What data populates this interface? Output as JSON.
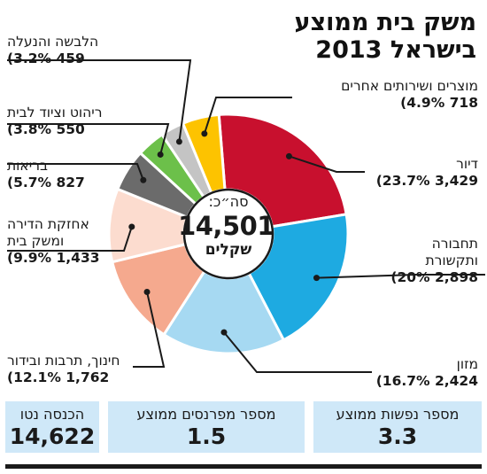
{
  "title_line1": "משק בית ממוצע",
  "title_line2": "בישראל 2013",
  "center": {
    "label": "סה״כ:",
    "value": "14,501",
    "unit": "שקלים"
  },
  "colors": {
    "outline": "#1a1a1a",
    "box_bg": "#cfe8f8"
  },
  "chart_data": {
    "type": "pie",
    "title": "משק בית ממוצע בישראל 2013",
    "total": 14501,
    "slices": [
      {
        "label": "דיור",
        "value": 3429,
        "percent": 23.7,
        "value_text": "3,429",
        "percent_text": "(23.7%",
        "color": "#c8102e"
      },
      {
        "label": "תחבורה\nותקשורת",
        "value": 2898,
        "percent": 20,
        "value_text": "2,898",
        "percent_text": "(20%",
        "color": "#1eaae1"
      },
      {
        "label": "מזון",
        "value": 2424,
        "percent": 16.7,
        "value_text": "2,424",
        "percent_text": "(16.7%",
        "color": "#a6d9f2"
      },
      {
        "label": "חינוך, תרבות ובידור",
        "value": 1762,
        "percent": 12.1,
        "value_text": "1,762",
        "percent_text": "(12.1%",
        "color": "#f5a98e"
      },
      {
        "label": "אחזקת הדירה\nומשק בית",
        "value": 1433,
        "percent": 9.9,
        "value_text": "1,433",
        "percent_text": "(9.9%",
        "color": "#fcdccf"
      },
      {
        "label": "בריאות",
        "value": 827,
        "percent": 5.7,
        "value_text": "827",
        "percent_text": "(5.7%",
        "color": "#6b6b6b"
      },
      {
        "label": "ריהוט וציוד לבית",
        "value": 550,
        "percent": 3.8,
        "value_text": "550",
        "percent_text": "(3.8%",
        "color": "#6cc04a"
      },
      {
        "label": "הלבשה והנעלה",
        "value": 459,
        "percent": 3.2,
        "value_text": "459",
        "percent_text": "(3.2%",
        "color": "#c4c4c4"
      },
      {
        "label": "מוצרים ושירותים אחרים",
        "value": 718,
        "percent": 4.9,
        "value_text": "718",
        "percent_text": "(4.9%",
        "color": "#fdc300"
      }
    ]
  },
  "boxes": [
    {
      "label": "מספר נפשות ממוצע",
      "value": "3.3"
    },
    {
      "label": "מספר מפרנסים ממוצע",
      "value": "1.5"
    },
    {
      "label": "הכנסה נטו",
      "value": "14,622"
    }
  ]
}
